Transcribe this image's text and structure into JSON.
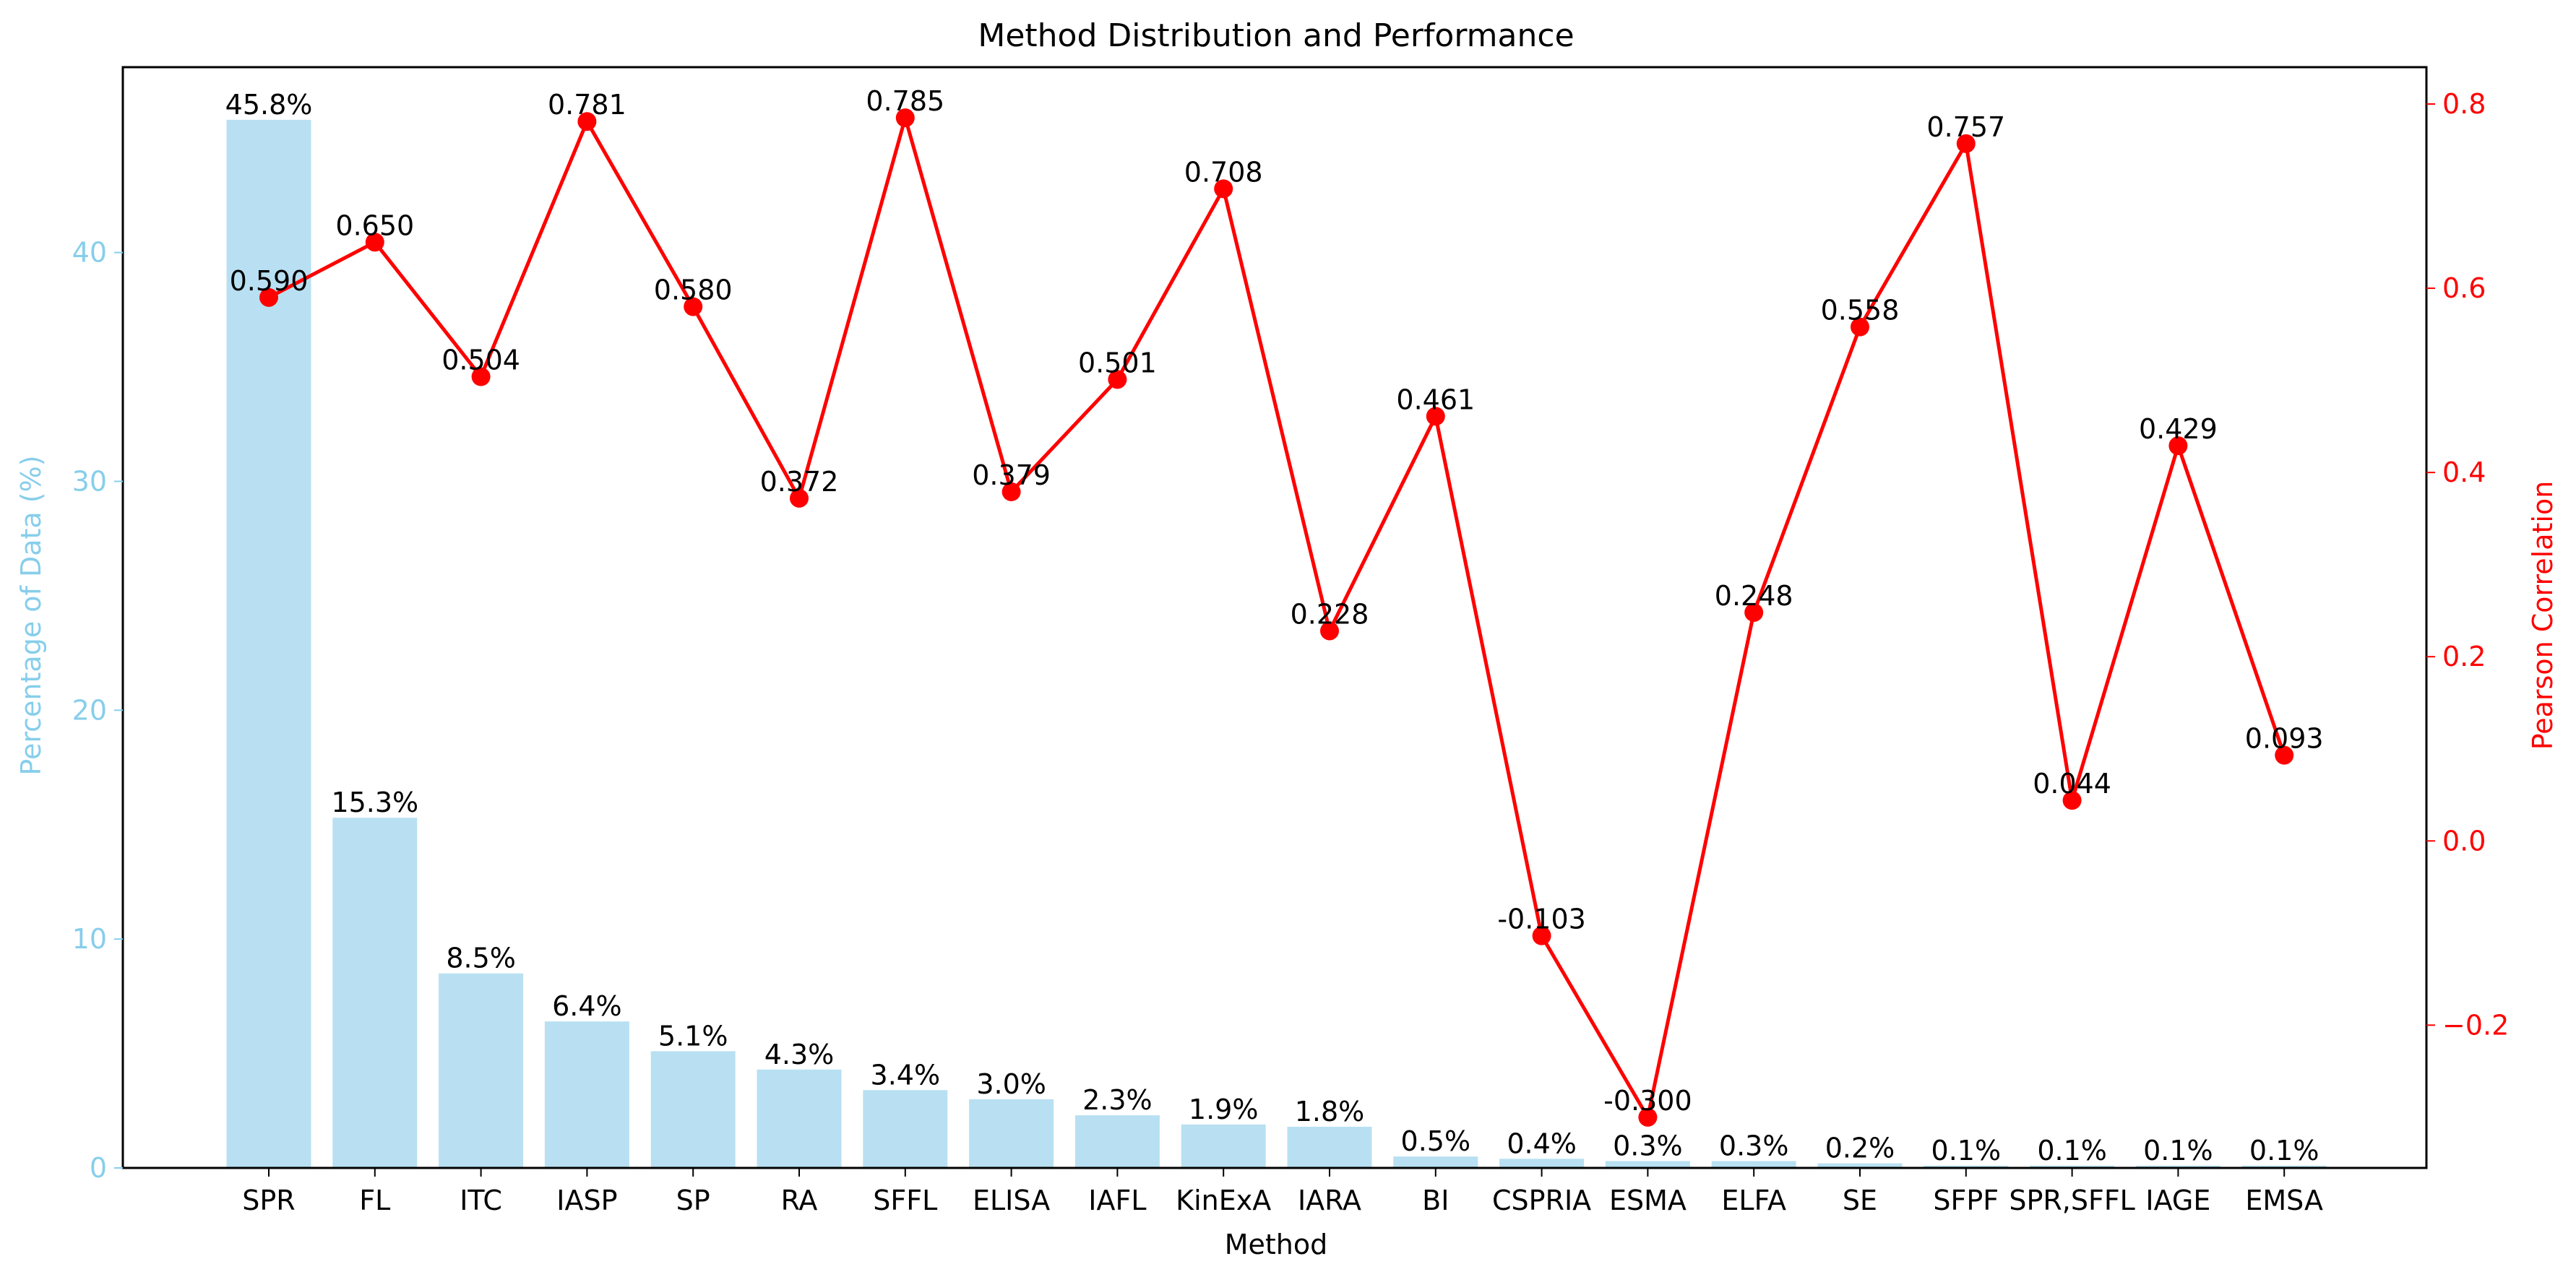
{
  "chart_data": {
    "type": "bar",
    "title": "Method Distribution and Performance",
    "xlabel": "Method",
    "categories": [
      "SPR",
      "FL",
      "ITC",
      "IASP",
      "SP",
      "RA",
      "SFFL",
      "ELISA",
      "IAFL",
      "KinExA",
      "IARA",
      "BI",
      "CSPRIA",
      "ESMA",
      "ELFA",
      "SE",
      "SFPF",
      "SPR,SFFL",
      "IAGE",
      "EMSA"
    ],
    "left_axis": {
      "label": "Percentage of Data (%)",
      "ylim": [
        0,
        48.1
      ],
      "ticks": [
        0,
        10,
        20,
        30,
        40
      ],
      "color": "#87ceeb"
    },
    "right_axis": {
      "label": "Pearson Correlation",
      "ylim": [
        -0.355,
        0.84
      ],
      "ticks": [
        -0.2,
        0.0,
        0.2,
        0.4,
        0.6,
        0.8
      ],
      "tick_labels": [
        "−0.2",
        "0.0",
        "0.2",
        "0.4",
        "0.6",
        "0.8"
      ],
      "color": "#ff0000"
    },
    "series": [
      {
        "kind": "bar",
        "axis": "left",
        "color": "#b8e0f2",
        "values": [
          45.8,
          15.3,
          8.5,
          6.4,
          5.1,
          4.3,
          3.4,
          3.0,
          2.3,
          1.9,
          1.8,
          0.5,
          0.4,
          0.3,
          0.3,
          0.2,
          0.1,
          0.1,
          0.1,
          0.1
        ],
        "labels": [
          "45.8%",
          "15.3%",
          "8.5%",
          "6.4%",
          "5.1%",
          "4.3%",
          "3.4%",
          "3.0%",
          "2.3%",
          "1.9%",
          "1.8%",
          "0.5%",
          "0.4%",
          "0.3%",
          "0.3%",
          "0.2%",
          "0.1%",
          "0.1%",
          "0.1%",
          "0.1%"
        ]
      },
      {
        "kind": "line",
        "axis": "right",
        "color": "#ff0000",
        "values": [
          0.59,
          0.65,
          0.504,
          0.781,
          0.58,
          0.372,
          0.785,
          0.379,
          0.501,
          0.708,
          0.228,
          0.461,
          -0.103,
          -0.3,
          0.248,
          0.558,
          0.757,
          0.044,
          0.429,
          0.093
        ],
        "labels": [
          "0.590",
          "0.650",
          "0.504",
          "0.781",
          "0.580",
          "0.372",
          "0.785",
          "0.379",
          "0.501",
          "0.708",
          "0.228",
          "0.461",
          "-0.103",
          "-0.300",
          "0.248",
          "0.558",
          "0.757",
          "0.044",
          "0.429",
          "0.093"
        ]
      }
    ],
    "grid": false
  }
}
